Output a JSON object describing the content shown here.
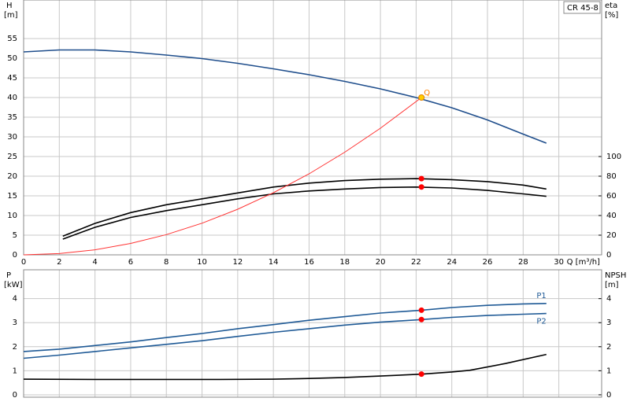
{
  "chart_data": [
    {
      "type": "line",
      "model": "CR 45-8",
      "x_label": "Q [m³/h]",
      "y_label": "H",
      "y_unit": "[m]",
      "y2_label": "eta",
      "y2_unit": "[%]",
      "xlim": [
        0,
        32.4
      ],
      "xticks": [
        0,
        2,
        4,
        6,
        8,
        10,
        12,
        14,
        16,
        18,
        20,
        22,
        24,
        26,
        28,
        30
      ],
      "ylim": [
        0,
        64.8
      ],
      "yticks": [
        0,
        5,
        10,
        15,
        20,
        25,
        30,
        35,
        40,
        45,
        50,
        55
      ],
      "y2lim": [
        0,
        259.2
      ],
      "y2ticks": [
        0,
        20,
        40,
        60,
        80,
        100
      ],
      "grid": true,
      "series": [
        {
          "color": "#1f4e8c",
          "x": [
            0,
            2,
            4,
            6,
            8,
            10,
            12,
            14,
            16,
            18,
            20,
            22,
            24,
            26,
            28,
            29.3
          ],
          "values": [
            51.6,
            52.1,
            52.1,
            51.6,
            50.8,
            49.9,
            48.7,
            47.3,
            45.8,
            44.1,
            42.2,
            40.0,
            37.4,
            34.3,
            30.7,
            28.4
          ]
        },
        {
          "color": "#000000",
          "axis": "y2",
          "x": [
            2.2,
            4,
            6,
            8,
            10,
            12,
            14,
            16,
            18,
            20,
            22,
            24,
            26,
            28,
            29.3
          ],
          "values": [
            19,
            32,
            43,
            51,
            57,
            63,
            69,
            73,
            75.5,
            77,
            77.5,
            76.5,
            74.5,
            71,
            67
          ]
        },
        {
          "color": "#000000",
          "axis": "y2",
          "x": [
            2.2,
            4,
            6,
            8,
            10,
            12,
            14,
            16,
            18,
            20,
            22,
            24,
            26,
            28,
            29.3
          ],
          "values": [
            16,
            28,
            38,
            45,
            51,
            57,
            62,
            65,
            67,
            68.5,
            69,
            68,
            65.5,
            62,
            59.5
          ]
        },
        {
          "color": "#ff3333",
          "x": [
            0,
            2,
            4,
            6,
            8,
            10,
            12,
            14,
            16,
            18,
            20,
            22.3
          ],
          "values": [
            0,
            0.32,
            1.29,
            2.9,
            5.15,
            8.04,
            11.6,
            15.8,
            20.6,
            26.1,
            32.2,
            40
          ]
        }
      ],
      "points": [
        {
          "x": 22.3,
          "y": 40,
          "color": "#ffcc00",
          "label": "Q"
        },
        {
          "x": 22.3,
          "y": 77.5,
          "axis": "y2",
          "color": "#ff0000"
        },
        {
          "x": 22.3,
          "y": 69,
          "axis": "y2",
          "color": "#ff0000"
        }
      ]
    },
    {
      "type": "line",
      "y_label": "P",
      "y_unit": "[kW]",
      "y2_label": "NPSH",
      "y2_unit": "[m]",
      "xlim": [
        0,
        32.4
      ],
      "xticks": [
        0,
        2,
        4,
        6,
        8,
        10,
        12,
        14,
        16,
        18,
        20,
        22,
        24,
        26,
        28,
        30
      ],
      "ylim": [
        -0.1,
        5.2
      ],
      "yticks": [
        0,
        1,
        2,
        3,
        4
      ],
      "y2lim": [
        -0.1,
        5.2
      ],
      "y2ticks": [
        0,
        1,
        2,
        3,
        4
      ],
      "grid": true,
      "series": [
        {
          "name": "P1",
          "color": "#1f5a96",
          "x": [
            0,
            2,
            4,
            6,
            8,
            10,
            12,
            14,
            16,
            18,
            20,
            22.3,
            24,
            26,
            28,
            29.3
          ],
          "values": [
            1.8,
            1.9,
            2.05,
            2.2,
            2.38,
            2.55,
            2.75,
            2.92,
            3.1,
            3.25,
            3.4,
            3.52,
            3.63,
            3.72,
            3.78,
            3.8
          ]
        },
        {
          "name": "P2",
          "color": "#1f5a96",
          "x": [
            0,
            2,
            4,
            6,
            8,
            10,
            12,
            14,
            16,
            18,
            20,
            22.3,
            24,
            26,
            28,
            29.3
          ],
          "values": [
            1.52,
            1.65,
            1.8,
            1.95,
            2.1,
            2.25,
            2.43,
            2.6,
            2.75,
            2.9,
            3.02,
            3.13,
            3.22,
            3.3,
            3.35,
            3.38
          ]
        },
        {
          "color": "#000000",
          "axis": "y2",
          "x": [
            0,
            4,
            8,
            11,
            14,
            16,
            18,
            20,
            22.3,
            24,
            25,
            27,
            29.3
          ],
          "values": [
            0.65,
            0.64,
            0.64,
            0.64,
            0.65,
            0.68,
            0.72,
            0.78,
            0.86,
            0.95,
            1.02,
            1.3,
            1.68
          ]
        }
      ],
      "points": [
        {
          "x": 22.3,
          "y": 3.52,
          "color": "#ff0000"
        },
        {
          "x": 22.3,
          "y": 3.13,
          "color": "#ff0000"
        },
        {
          "x": 22.3,
          "y": 0.86,
          "axis": "y2",
          "color": "#ff0000"
        }
      ]
    }
  ]
}
